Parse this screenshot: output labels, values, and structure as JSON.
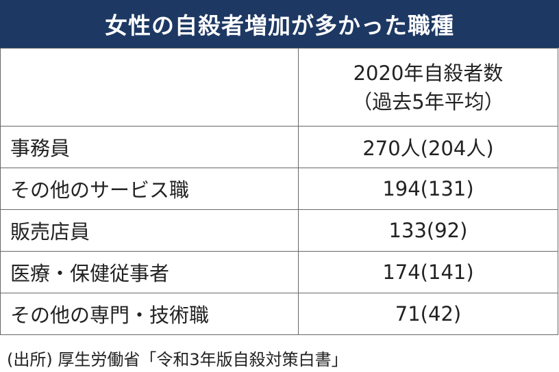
{
  "header": {
    "title": "女性の自殺者増加が多かった職種"
  },
  "table": {
    "column_header": [
      "2020年自殺者数",
      "（過去5年平均）"
    ],
    "rows": [
      [
        "事務員",
        "270人(204人)"
      ],
      [
        "その他のサービス職",
        "194(131)"
      ],
      [
        "販売店員",
        "133(92)"
      ],
      [
        "医療・保健従事者",
        "174(141)"
      ],
      [
        "その他の専門・技術職",
        "71(42)"
      ]
    ]
  },
  "footer": {
    "source": "(出所) 厚生労働省「令和3年版自殺対策白書」"
  }
}
